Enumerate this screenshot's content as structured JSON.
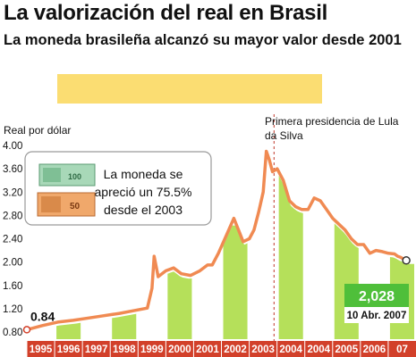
{
  "title": "La valorización del real en Brasil",
  "subtitle": "La moneda brasileña alcanzó su mayor valor desde 2001",
  "colors": {
    "line": "#f08a52",
    "band_green": "#b5e05a",
    "band_white": "#ffffff",
    "axis_red": "#d2402a",
    "highlight_green": "#4fbf3a",
    "yellow": "#fbdd72",
    "divider": "#c0392b"
  },
  "chart_data": {
    "type": "line",
    "title": "La valorización del real en Brasil",
    "ylabel": "Real por dólar",
    "ylim": [
      0.8,
      4.0
    ],
    "yticks": [
      "4.00",
      "3.60",
      "3.20",
      "2.80",
      "2.40",
      "2.00",
      "1.60",
      "1.20",
      "0.80"
    ],
    "x_tick_labels": [
      "1995",
      "1996",
      "1997",
      "1998",
      "1999",
      "2000",
      "2001",
      "2002",
      "2003",
      "2004",
      "2004",
      "2005",
      "2006",
      "07"
    ],
    "series": [
      {
        "points": [
          [
            1995.0,
            0.84
          ],
          [
            1995.5,
            0.91
          ],
          [
            1996.0,
            0.97
          ],
          [
            1996.5,
            1.0
          ],
          [
            1997.0,
            1.04
          ],
          [
            1997.5,
            1.08
          ],
          [
            1998.0,
            1.12
          ],
          [
            1998.5,
            1.17
          ],
          [
            1998.9,
            1.21
          ],
          [
            1999.05,
            1.55
          ],
          [
            1999.12,
            2.1
          ],
          [
            1999.25,
            1.75
          ],
          [
            1999.5,
            1.85
          ],
          [
            1999.75,
            1.9
          ],
          [
            2000.0,
            1.8
          ],
          [
            2000.3,
            1.77
          ],
          [
            2000.6,
            1.85
          ],
          [
            2000.85,
            1.95
          ],
          [
            2001.0,
            1.95
          ],
          [
            2001.2,
            2.15
          ],
          [
            2001.45,
            2.45
          ],
          [
            2001.7,
            2.75
          ],
          [
            2001.85,
            2.55
          ],
          [
            2002.0,
            2.35
          ],
          [
            2002.2,
            2.4
          ],
          [
            2002.35,
            2.55
          ],
          [
            2002.5,
            2.85
          ],
          [
            2002.65,
            3.2
          ],
          [
            2002.75,
            3.9
          ],
          [
            2002.85,
            3.75
          ],
          [
            2002.95,
            3.55
          ],
          [
            2003.1,
            3.6
          ],
          [
            2003.3,
            3.4
          ],
          [
            2003.5,
            3.05
          ],
          [
            2003.7,
            2.95
          ],
          [
            2003.9,
            2.9
          ],
          [
            2004.1,
            2.9
          ],
          [
            2004.3,
            3.1
          ],
          [
            2004.5,
            3.05
          ],
          [
            2004.7,
            2.9
          ],
          [
            2004.9,
            2.75
          ],
          [
            2005.1,
            2.65
          ],
          [
            2005.3,
            2.55
          ],
          [
            2005.5,
            2.4
          ],
          [
            2005.7,
            2.3
          ],
          [
            2005.9,
            2.3
          ],
          [
            2006.1,
            2.15
          ],
          [
            2006.3,
            2.2
          ],
          [
            2006.5,
            2.18
          ],
          [
            2006.7,
            2.15
          ],
          [
            2006.9,
            2.14
          ],
          [
            2007.0,
            2.1
          ],
          [
            2007.1,
            2.08
          ],
          [
            2007.28,
            2.028
          ]
        ]
      }
    ],
    "annotations": {
      "start_label": "0.84",
      "end_value": "2,028",
      "end_date": "10 Abr. 2007",
      "lula_label": "Primera presidencia de Lula da Silva",
      "callout": "La moneda se apreció un 75.5% desde el 2003"
    },
    "grid": false
  }
}
